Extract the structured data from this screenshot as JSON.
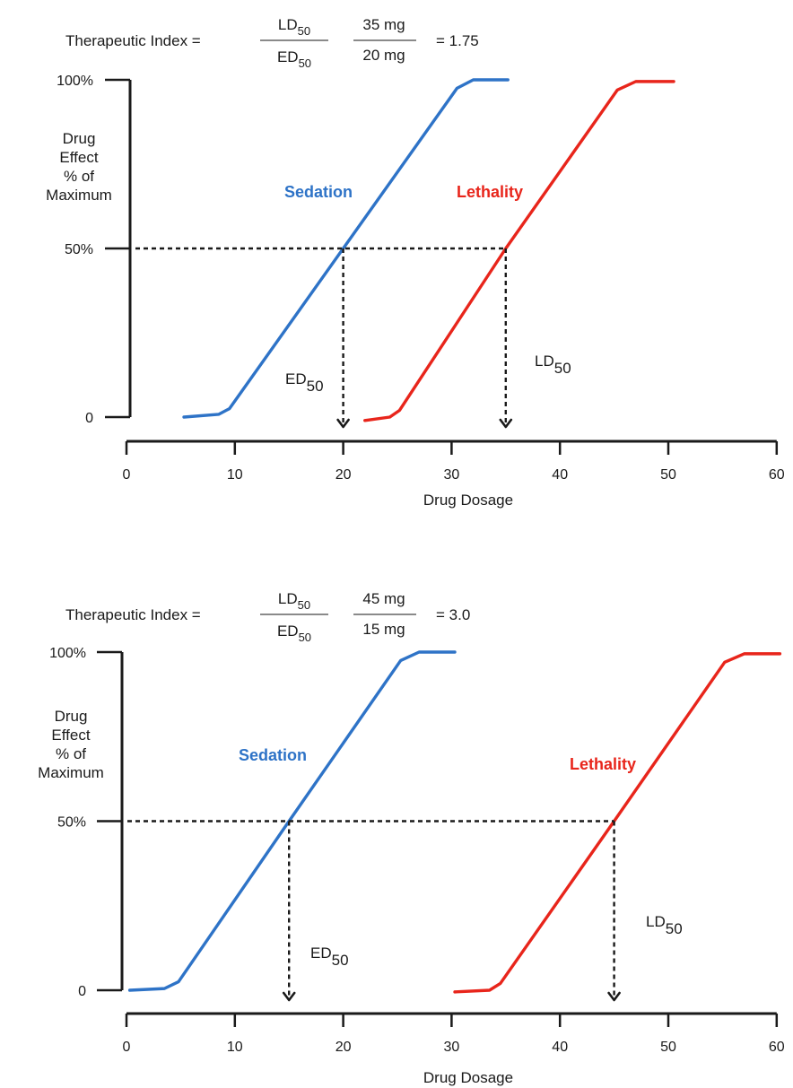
{
  "chart_data": [
    {
      "type": "line",
      "formula": {
        "prefix": "Therapeutic Index =",
        "numerator": "LD",
        "numerator_sub": "50",
        "denominator": "ED",
        "denominator_sub": "50",
        "value_numerator": "35 mg",
        "value_denominator": "20 mg",
        "result": "= 1.75"
      },
      "ylabel_lines": [
        "Drug",
        "Effect",
        "% of",
        "Maximum"
      ],
      "xlabel": "Drug Dosage",
      "x_ticks": [
        0,
        10,
        20,
        30,
        40,
        50,
        60
      ],
      "y_ticks": [
        {
          "value": 0,
          "label": "0"
        },
        {
          "value": 50,
          "label": "50%"
        },
        {
          "value": 100,
          "label": "100%"
        }
      ],
      "xlim": [
        0,
        60
      ],
      "ylim": [
        0,
        100
      ],
      "grid": false,
      "series": [
        {
          "name": "Sedation",
          "color": "#2e73c7",
          "x": [
            5.3,
            8.5,
            9.5,
            20,
            30.5,
            32,
            35.2
          ],
          "y": [
            0,
            0.8,
            2.5,
            50,
            97.5,
            100,
            100
          ]
        },
        {
          "name": "Lethality",
          "color": "#e8251b",
          "x": [
            22,
            24.3,
            25.2,
            35,
            45.3,
            47,
            50.5
          ],
          "y": [
            -1,
            0,
            2,
            50,
            97,
            99.5,
            99.5
          ]
        }
      ],
      "annotations": [
        {
          "label": "ED",
          "sub": "50",
          "x": 20,
          "y": 50
        },
        {
          "label": "LD",
          "sub": "50",
          "x": 35,
          "y": 50
        }
      ]
    },
    {
      "type": "line",
      "formula": {
        "prefix": "Therapeutic Index =",
        "numerator": "LD",
        "numerator_sub": "50",
        "denominator": "ED",
        "denominator_sub": "50",
        "value_numerator": "45 mg",
        "value_denominator": "15 mg",
        "result": "= 3.0"
      },
      "ylabel_lines": [
        "Drug",
        "Effect",
        "% of",
        "Maximum"
      ],
      "xlabel": "Drug Dosage",
      "x_ticks": [
        0,
        10,
        20,
        30,
        40,
        50,
        60
      ],
      "y_ticks": [
        {
          "value": 0,
          "label": "0"
        },
        {
          "value": 50,
          "label": "50%"
        },
        {
          "value": 100,
          "label": "100%"
        }
      ],
      "xlim": [
        0,
        60
      ],
      "ylim": [
        0,
        100
      ],
      "grid": false,
      "series": [
        {
          "name": "Sedation",
          "color": "#2e73c7",
          "x": [
            0.3,
            3.5,
            4.8,
            15,
            25.3,
            27,
            30.3
          ],
          "y": [
            0,
            0.5,
            2.5,
            50,
            97.5,
            100,
            100
          ]
        },
        {
          "name": "Lethality",
          "color": "#e8251b",
          "x": [
            30.3,
            33.5,
            34.5,
            45,
            55.2,
            57,
            60.3
          ],
          "y": [
            -0.5,
            0,
            2,
            50,
            97,
            99.5,
            99.5
          ]
        }
      ],
      "annotations": [
        {
          "label": "ED",
          "sub": "50",
          "x": 15,
          "y": 50
        },
        {
          "label": "LD",
          "sub": "50",
          "x": 45,
          "y": 50
        }
      ]
    }
  ]
}
